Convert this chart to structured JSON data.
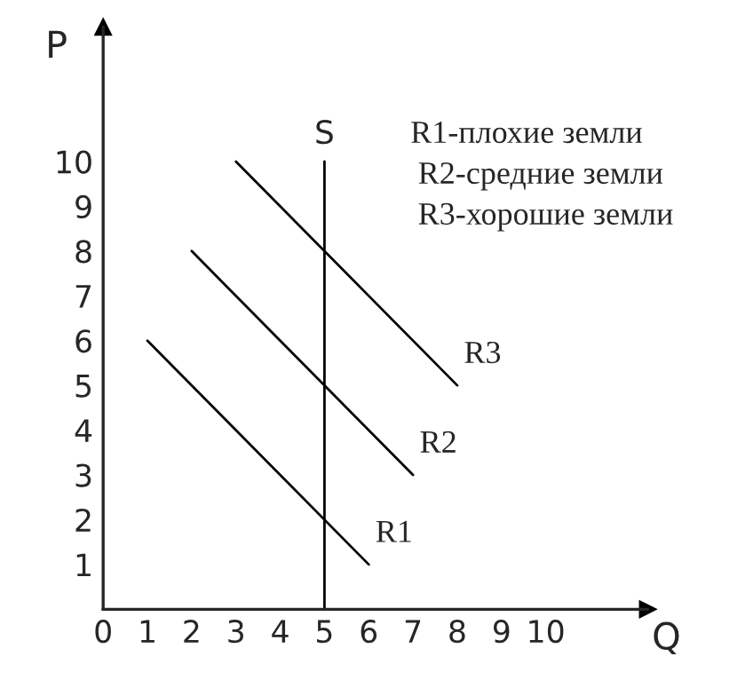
{
  "chart_data": {
    "type": "line",
    "xlabel": "Q",
    "ylabel": "P",
    "series": [
      {
        "name": "R1",
        "color": "#000000",
        "x": [
          1,
          6
        ],
        "values": [
          6,
          1
        ]
      },
      {
        "name": "R2",
        "color": "#000000",
        "x": [
          2,
          7
        ],
        "values": [
          8,
          3
        ]
      },
      {
        "name": "R3",
        "color": "#000000",
        "x": [
          3,
          8
        ],
        "values": [
          10,
          5
        ]
      }
    ],
    "xlim": [
      0,
      12.3
    ],
    "ylim": [
      0,
      13
    ],
    "xticks": [
      0,
      1,
      2,
      3,
      4,
      5,
      6,
      7,
      8,
      9,
      10
    ],
    "yticks": [
      1,
      2,
      3,
      4,
      5,
      6,
      7,
      8,
      9,
      10
    ],
    "ref_lines": [
      {
        "axis": "x",
        "value": 5,
        "label": "S",
        "color": "#000000"
      }
    ],
    "annotations": [
      "R1-плохие земли",
      "R2-средние земли",
      "R3-хорошие земли"
    ],
    "grid": false,
    "legend": false,
    "marker": "none",
    "line_style": "solid"
  }
}
